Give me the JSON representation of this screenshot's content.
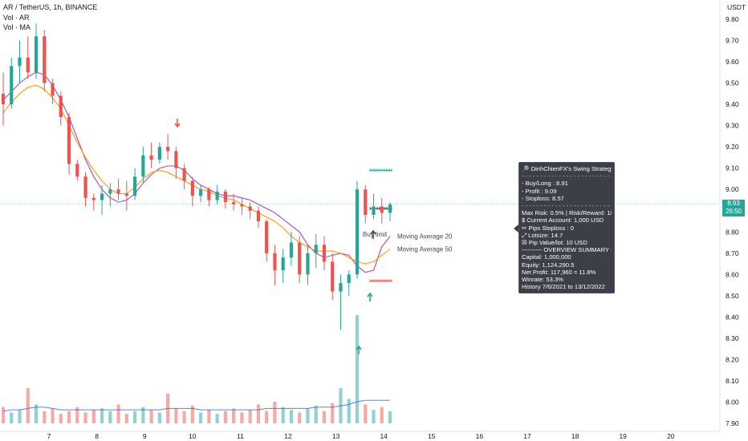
{
  "legend": {
    "symbol_line": "AR / TetherUS, 1h, BINANCE",
    "vol_ar": "Vol · AR",
    "vol_ma": "Vol · MA"
  },
  "axis": {
    "currency": "USDT",
    "last_price": "8.93",
    "countdown": "26:50"
  },
  "colors": {
    "up": "#26a69a",
    "down": "#ef5350",
    "ma20": "#ab47bc",
    "ma50": "#ff9800",
    "vol_ma": "#2962ff",
    "marker_green": "#26a69a",
    "marker_red": "#ef5350"
  },
  "annotations": {
    "buy_limit": "Buy limit",
    "ma20_label": "Moving Average 20",
    "ma50_label": "Moving Average 50"
  },
  "info_box": {
    "title": "DinhChienFX's Swing Strategy",
    "lines": [
      "- Buy/Long   : 8.91",
      "- Profit  : 9.09",
      "- Stoploss: 8.57",
      "Max Risk: 0.5% | Risk/Reward: 1/1",
      "$ Current Account: 1,000 USD",
      "✂ Pips Stoploss : 0",
      "⤢ Lotsize: 14.7",
      "☒ Pip Value/lot: 10 USD",
      "---------- OVERVIEW SUMMARY ----------",
      "Capital: 1,000,000",
      "Equity: 1,124,290.5",
      "Net Profit: 117,960 = 11.8%",
      "Winrate: 53.3%",
      "History 7/6/2021 to 13/12/2022"
    ]
  },
  "chart_data": {
    "type": "candlestick",
    "title": "AR / TetherUS, 1h, BINANCE",
    "x_tick_labels": [
      "7",
      "8",
      "9",
      "10",
      "11",
      "12",
      "13",
      "14",
      "15",
      "16",
      "17",
      "18",
      "19",
      "20"
    ],
    "y_tick_labels": [
      "9.80",
      "9.70",
      "9.60",
      "9.50",
      "9.40",
      "9.30",
      "9.20",
      "9.10",
      "9.00",
      "8.90",
      "8.80",
      "8.70",
      "8.60",
      "8.50",
      "8.40",
      "8.30",
      "8.20",
      "8.10",
      "8.00",
      "7.90"
    ],
    "ylim": [
      7.88,
      9.84
    ],
    "grid": false,
    "price_levels": {
      "buy": 8.91,
      "profit": 9.09,
      "stoploss": 8.57,
      "last": 8.93
    },
    "series": [
      {
        "name": "Moving Average 20",
        "values": [
          9.42,
          9.46,
          9.5,
          9.53,
          9.55,
          9.54,
          9.49,
          9.42,
          9.34,
          9.24,
          9.14,
          9.06,
          9.0,
          8.96,
          8.94,
          8.95,
          8.98,
          9.03,
          9.07,
          9.1,
          9.11,
          9.11,
          9.09,
          9.05,
          9.02,
          9.0,
          8.98,
          8.97,
          8.97,
          8.96,
          8.95,
          8.93,
          8.91,
          8.89,
          8.86,
          8.83,
          8.8,
          8.74,
          8.7,
          8.68,
          8.69,
          8.7,
          8.69,
          8.64,
          8.61,
          8.62,
          8.73,
          8.78
        ]
      },
      {
        "name": "Moving Average 50",
        "values": [
          9.36,
          9.41,
          9.45,
          9.48,
          9.49,
          9.47,
          9.43,
          9.38,
          9.3,
          9.22,
          9.15,
          9.09,
          9.04,
          9.0,
          8.98,
          8.98,
          9.01,
          9.05,
          9.08,
          9.09,
          9.08,
          9.06,
          9.04,
          9.02,
          9.0,
          8.99,
          8.97,
          8.96,
          8.95,
          8.93,
          8.91,
          8.89,
          8.87,
          8.85,
          8.82,
          8.78,
          8.75,
          8.73,
          8.71,
          8.71,
          8.71,
          8.7,
          8.68,
          8.66,
          8.65,
          8.66,
          8.69,
          8.72
        ]
      }
    ],
    "candles": [
      [
        9.45,
        9.55,
        9.3,
        9.4
      ],
      [
        9.4,
        9.62,
        9.38,
        9.58
      ],
      [
        9.58,
        9.7,
        9.5,
        9.62
      ],
      [
        9.62,
        9.72,
        9.52,
        9.55
      ],
      [
        9.55,
        9.78,
        9.52,
        9.72
      ],
      [
        9.72,
        9.75,
        9.46,
        9.5
      ],
      [
        9.5,
        9.52,
        9.4,
        9.44
      ],
      [
        9.44,
        9.46,
        9.3,
        9.34
      ],
      [
        9.34,
        9.36,
        9.07,
        9.12
      ],
      [
        9.12,
        9.14,
        9.04,
        9.06
      ],
      [
        9.06,
        9.08,
        8.92,
        8.96
      ],
      [
        8.96,
        8.98,
        8.9,
        8.95
      ],
      [
        8.95,
        9.02,
        8.88,
        8.98
      ],
      [
        8.98,
        9.03,
        8.92,
        9.0
      ],
      [
        9.0,
        9.05,
        8.95,
        8.98
      ],
      [
        8.98,
        9.04,
        8.9,
        8.97
      ],
      [
        8.97,
        9.1,
        8.95,
        9.06
      ],
      [
        9.06,
        9.2,
        9.03,
        9.16
      ],
      [
        9.16,
        9.22,
        9.1,
        9.14
      ],
      [
        9.14,
        9.22,
        9.12,
        9.2
      ],
      [
        9.2,
        9.26,
        9.14,
        9.18
      ],
      [
        9.18,
        9.2,
        9.05,
        9.1
      ],
      [
        9.1,
        9.12,
        9.0,
        9.04
      ],
      [
        9.04,
        9.06,
        8.92,
        8.97
      ],
      [
        8.97,
        9.02,
        8.94,
        9.0
      ],
      [
        9.0,
        9.01,
        8.92,
        8.95
      ],
      [
        8.95,
        9.02,
        8.93,
        8.99
      ],
      [
        8.99,
        9.0,
        8.91,
        8.94
      ],
      [
        8.94,
        8.98,
        8.9,
        8.93
      ],
      [
        8.93,
        8.96,
        8.88,
        8.92
      ],
      [
        8.92,
        8.94,
        8.86,
        8.9
      ],
      [
        8.9,
        8.92,
        8.82,
        8.85
      ],
      [
        8.85,
        8.86,
        8.66,
        8.7
      ],
      [
        8.7,
        8.74,
        8.55,
        8.62
      ],
      [
        8.62,
        8.72,
        8.56,
        8.68
      ],
      [
        8.68,
        8.8,
        8.64,
        8.75
      ],
      [
        8.75,
        8.78,
        8.56,
        8.6
      ],
      [
        8.6,
        8.74,
        8.55,
        8.7
      ],
      [
        8.7,
        8.79,
        8.63,
        8.74
      ],
      [
        8.74,
        8.78,
        8.62,
        8.66
      ],
      [
        8.66,
        8.7,
        8.48,
        8.52
      ],
      [
        8.52,
        8.6,
        8.34,
        8.56
      ],
      [
        8.56,
        8.62,
        8.5,
        8.6
      ],
      [
        8.6,
        9.04,
        8.58,
        9.0
      ],
      [
        9.0,
        9.02,
        8.84,
        8.88
      ],
      [
        8.88,
        8.98,
        8.86,
        8.92
      ],
      [
        8.92,
        8.96,
        8.84,
        8.89
      ],
      [
        8.89,
        8.94,
        8.85,
        8.93
      ]
    ],
    "volume": [
      12,
      8,
      10,
      26,
      14,
      9,
      11,
      7,
      9,
      12,
      8,
      10,
      11,
      9,
      14,
      7,
      9,
      12,
      10,
      8,
      22,
      11,
      9,
      13,
      8,
      10,
      7,
      9,
      11,
      8,
      10,
      14,
      9,
      16,
      12,
      10,
      8,
      11,
      13,
      9,
      15,
      26,
      18,
      80,
      14,
      10,
      12,
      9
    ],
    "volume_ma": [
      9,
      10,
      10,
      11,
      12,
      12,
      11,
      10,
      10,
      10,
      10,
      10,
      10,
      10,
      10,
      10,
      10,
      10,
      10,
      10,
      11,
      11,
      11,
      11,
      10,
      10,
      10,
      10,
      10,
      10,
      10,
      10,
      11,
      11,
      11,
      11,
      11,
      11,
      12,
      12,
      12,
      13,
      14,
      16,
      17,
      17,
      17,
      17
    ]
  }
}
